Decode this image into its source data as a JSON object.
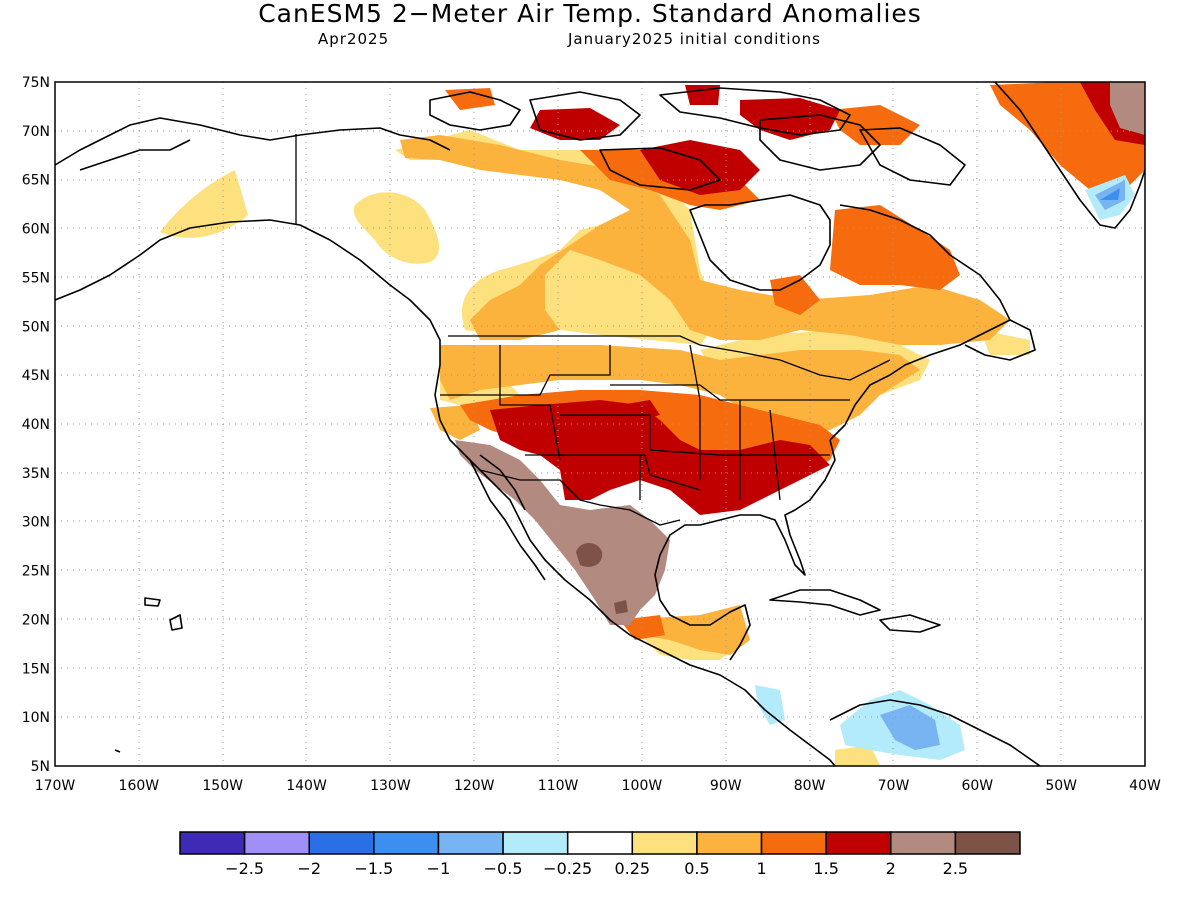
{
  "title": "CanESM5 2−Meter Air Temp. Standard Anomalies",
  "subtitle_left": "Apr2025",
  "subtitle_right": "January2025 initial conditions",
  "map": {
    "lon_range": [
      -170,
      -40
    ],
    "lat_range": [
      5,
      75
    ],
    "lat_ticks": [
      "5N",
      "10N",
      "15N",
      "20N",
      "25N",
      "30N",
      "35N",
      "40N",
      "45N",
      "50N",
      "55N",
      "60N",
      "65N",
      "70N",
      "75N"
    ],
    "lon_ticks": [
      "170W",
      "160W",
      "150W",
      "140W",
      "130W",
      "120W",
      "110W",
      "100W",
      "90W",
      "80W",
      "70W",
      "60W",
      "50W",
      "40W"
    ],
    "grid": "dotted"
  },
  "colorbar": {
    "colors": [
      "#3f2ab5",
      "#a090f5",
      "#2a6fe6",
      "#3c8fee",
      "#78b3f2",
      "#b3ebfa",
      "#ffffff",
      "#fde17e",
      "#fbb33e",
      "#f66b0e",
      "#c00000",
      "#b38a7f",
      "#7d5348"
    ],
    "labels": [
      "−2.5",
      "−2",
      "−1.5",
      "−1",
      "−0.5",
      "−0.25",
      "0.25",
      "0.5",
      "1",
      "1.5",
      "2",
      "2.5"
    ]
  }
}
